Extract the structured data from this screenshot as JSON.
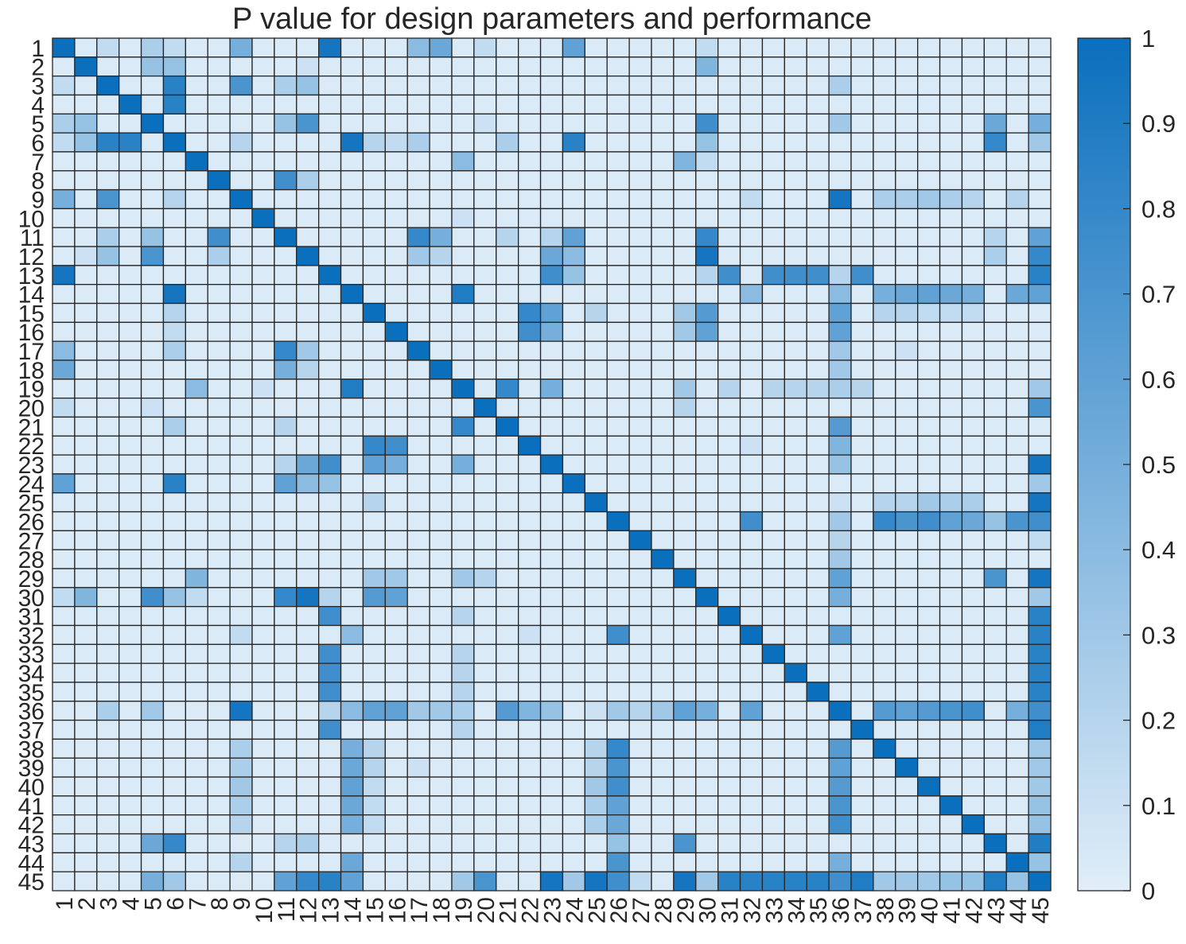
{
  "chart_data": {
    "type": "heatmap",
    "title": "P value for design parameters and performance",
    "size": 45,
    "x_labels": [
      "1",
      "2",
      "3",
      "4",
      "5",
      "6",
      "7",
      "8",
      "9",
      "10",
      "11",
      "12",
      "13",
      "14",
      "15",
      "16",
      "17",
      "18",
      "19",
      "20",
      "21",
      "22",
      "23",
      "24",
      "25",
      "26",
      "27",
      "28",
      "29",
      "30",
      "31",
      "32",
      "33",
      "34",
      "35",
      "36",
      "37",
      "38",
      "39",
      "40",
      "41",
      "42",
      "43",
      "44",
      "45"
    ],
    "y_labels": [
      "1",
      "2",
      "3",
      "4",
      "5",
      "6",
      "7",
      "8",
      "9",
      "10",
      "11",
      "12",
      "13",
      "14",
      "15",
      "16",
      "17",
      "18",
      "19",
      "20",
      "21",
      "22",
      "23",
      "24",
      "25",
      "26",
      "27",
      "28",
      "29",
      "30",
      "31",
      "32",
      "33",
      "34",
      "35",
      "36",
      "37",
      "38",
      "39",
      "40",
      "41",
      "42",
      "43",
      "44",
      "45"
    ],
    "value_range": [
      0,
      1
    ],
    "default_value": 0.03,
    "colorbar": {
      "ticks": [
        0,
        0.1,
        0.2,
        0.3,
        0.4,
        0.5,
        0.6,
        0.7,
        0.8,
        0.9,
        1
      ],
      "tick_labels": [
        "0",
        "0.1",
        "0.2",
        "0.3",
        "0.4",
        "0.5",
        "0.6",
        "0.7",
        "0.8",
        "0.9",
        "1"
      ],
      "color_low": "#e1eef9",
      "color_high": "#0a6fbd",
      "placement": "right"
    },
    "grid_color": "#262626",
    "cells": [
      [
        1,
        9,
        0.5
      ],
      [
        1,
        13,
        0.95
      ],
      [
        1,
        17,
        0.4
      ],
      [
        1,
        18,
        0.55
      ],
      [
        1,
        24,
        0.6
      ],
      [
        1,
        3,
        0.15
      ],
      [
        1,
        5,
        0.25
      ],
      [
        1,
        6,
        0.15
      ],
      [
        1,
        20,
        0.15
      ],
      [
        1,
        30,
        0.15
      ],
      [
        2,
        5,
        0.35
      ],
      [
        2,
        6,
        0.35
      ],
      [
        2,
        30,
        0.45
      ],
      [
        2,
        12,
        0.1
      ],
      [
        3,
        6,
        0.85
      ],
      [
        3,
        9,
        0.7
      ],
      [
        3,
        11,
        0.25
      ],
      [
        3,
        12,
        0.35
      ],
      [
        3,
        36,
        0.25
      ],
      [
        4,
        6,
        0.85
      ],
      [
        5,
        11,
        0.35
      ],
      [
        5,
        12,
        0.7
      ],
      [
        5,
        30,
        0.75
      ],
      [
        5,
        43,
        0.55
      ],
      [
        5,
        45,
        0.5
      ],
      [
        5,
        36,
        0.3
      ],
      [
        5,
        20,
        0.1
      ],
      [
        6,
        14,
        0.95
      ],
      [
        6,
        24,
        0.85
      ],
      [
        6,
        30,
        0.35
      ],
      [
        6,
        43,
        0.8
      ],
      [
        6,
        15,
        0.2
      ],
      [
        6,
        17,
        0.25
      ],
      [
        6,
        21,
        0.25
      ],
      [
        6,
        16,
        0.15
      ],
      [
        6,
        45,
        0.3
      ],
      [
        6,
        9,
        0.2
      ],
      [
        7,
        19,
        0.4
      ],
      [
        7,
        29,
        0.45
      ],
      [
        7,
        30,
        0.15
      ],
      [
        8,
        11,
        0.75
      ],
      [
        8,
        12,
        0.25
      ],
      [
        9,
        36,
        0.95
      ],
      [
        9,
        32,
        0.15
      ],
      [
        9,
        38,
        0.25
      ],
      [
        9,
        39,
        0.25
      ],
      [
        9,
        40,
        0.3
      ],
      [
        9,
        41,
        0.25
      ],
      [
        9,
        42,
        0.2
      ],
      [
        9,
        44,
        0.2
      ],
      [
        10,
        19,
        0.1
      ],
      [
        11,
        17,
        0.8
      ],
      [
        11,
        18,
        0.5
      ],
      [
        11,
        24,
        0.6
      ],
      [
        11,
        30,
        0.8
      ],
      [
        11,
        45,
        0.6
      ],
      [
        11,
        21,
        0.2
      ],
      [
        11,
        23,
        0.2
      ],
      [
        11,
        43,
        0.2
      ],
      [
        12,
        23,
        0.55
      ],
      [
        12,
        24,
        0.4
      ],
      [
        12,
        30,
        0.95
      ],
      [
        12,
        17,
        0.3
      ],
      [
        12,
        18,
        0.2
      ],
      [
        12,
        43,
        0.25
      ],
      [
        12,
        45,
        0.8
      ],
      [
        13,
        23,
        0.75
      ],
      [
        13,
        24,
        0.35
      ],
      [
        13,
        31,
        0.75
      ],
      [
        13,
        33,
        0.75
      ],
      [
        13,
        34,
        0.75
      ],
      [
        13,
        35,
        0.75
      ],
      [
        13,
        37,
        0.75
      ],
      [
        13,
        45,
        0.85
      ],
      [
        13,
        36,
        0.2
      ],
      [
        13,
        30,
        0.2
      ],
      [
        14,
        19,
        0.9
      ],
      [
        14,
        32,
        0.4
      ],
      [
        14,
        36,
        0.4
      ],
      [
        14,
        38,
        0.5
      ],
      [
        14,
        39,
        0.55
      ],
      [
        14,
        40,
        0.6
      ],
      [
        14,
        41,
        0.55
      ],
      [
        14,
        42,
        0.5
      ],
      [
        14,
        44,
        0.55
      ],
      [
        14,
        45,
        0.6
      ],
      [
        15,
        22,
        0.8
      ],
      [
        15,
        23,
        0.6
      ],
      [
        15,
        30,
        0.65
      ],
      [
        15,
        36,
        0.6
      ],
      [
        15,
        29,
        0.3
      ],
      [
        15,
        25,
        0.2
      ],
      [
        15,
        38,
        0.2
      ],
      [
        15,
        39,
        0.2
      ],
      [
        15,
        40,
        0.15
      ],
      [
        15,
        41,
        0.15
      ],
      [
        15,
        42,
        0.15
      ],
      [
        16,
        22,
        0.75
      ],
      [
        16,
        23,
        0.5
      ],
      [
        16,
        30,
        0.6
      ],
      [
        16,
        36,
        0.6
      ],
      [
        16,
        29,
        0.3
      ],
      [
        17,
        36,
        0.3
      ],
      [
        17,
        39,
        0.1
      ],
      [
        18,
        36,
        0.3
      ],
      [
        19,
        21,
        0.8
      ],
      [
        19,
        23,
        0.5
      ],
      [
        19,
        29,
        0.3
      ],
      [
        19,
        31,
        0.2
      ],
      [
        19,
        33,
        0.2
      ],
      [
        19,
        34,
        0.2
      ],
      [
        19,
        35,
        0.2
      ],
      [
        19,
        36,
        0.25
      ],
      [
        19,
        37,
        0.2
      ],
      [
        19,
        45,
        0.3
      ],
      [
        20,
        45,
        0.7
      ],
      [
        20,
        29,
        0.2
      ],
      [
        21,
        36,
        0.65
      ],
      [
        22,
        36,
        0.45
      ],
      [
        22,
        32,
        0.1
      ],
      [
        23,
        36,
        0.35
      ],
      [
        23,
        45,
        0.95
      ],
      [
        24,
        45,
        0.3
      ],
      [
        25,
        45,
        0.95
      ],
      [
        25,
        38,
        0.2
      ],
      [
        25,
        39,
        0.2
      ],
      [
        25,
        40,
        0.3
      ],
      [
        25,
        41,
        0.25
      ],
      [
        25,
        42,
        0.25
      ],
      [
        25,
        36,
        0.1
      ],
      [
        26,
        32,
        0.75
      ],
      [
        26,
        38,
        0.8
      ],
      [
        26,
        39,
        0.7
      ],
      [
        26,
        40,
        0.75
      ],
      [
        26,
        41,
        0.6
      ],
      [
        26,
        42,
        0.55
      ],
      [
        26,
        43,
        0.35
      ],
      [
        26,
        44,
        0.7
      ],
      [
        26,
        45,
        0.75
      ],
      [
        26,
        36,
        0.3
      ],
      [
        27,
        36,
        0.2
      ],
      [
        27,
        45,
        0.15
      ],
      [
        28,
        36,
        0.3
      ],
      [
        29,
        36,
        0.6
      ],
      [
        29,
        43,
        0.7
      ],
      [
        29,
        45,
        0.95
      ],
      [
        30,
        36,
        0.5
      ],
      [
        30,
        45,
        0.3
      ],
      [
        31,
        45,
        0.85
      ],
      [
        32,
        36,
        0.6
      ],
      [
        32,
        45,
        0.85
      ],
      [
        33,
        45,
        0.85
      ],
      [
        34,
        45,
        0.85
      ],
      [
        35,
        45,
        0.85
      ],
      [
        36,
        38,
        0.65
      ],
      [
        36,
        39,
        0.6
      ],
      [
        36,
        40,
        0.65
      ],
      [
        36,
        41,
        0.7
      ],
      [
        36,
        42,
        0.75
      ],
      [
        36,
        44,
        0.5
      ],
      [
        36,
        45,
        0.75
      ],
      [
        37,
        45,
        0.9
      ],
      [
        38,
        45,
        0.3
      ],
      [
        39,
        45,
        0.3
      ],
      [
        40,
        45,
        0.3
      ],
      [
        41,
        45,
        0.35
      ],
      [
        42,
        45,
        0.35
      ],
      [
        43,
        45,
        0.9
      ],
      [
        44,
        45,
        0.35
      ]
    ]
  }
}
